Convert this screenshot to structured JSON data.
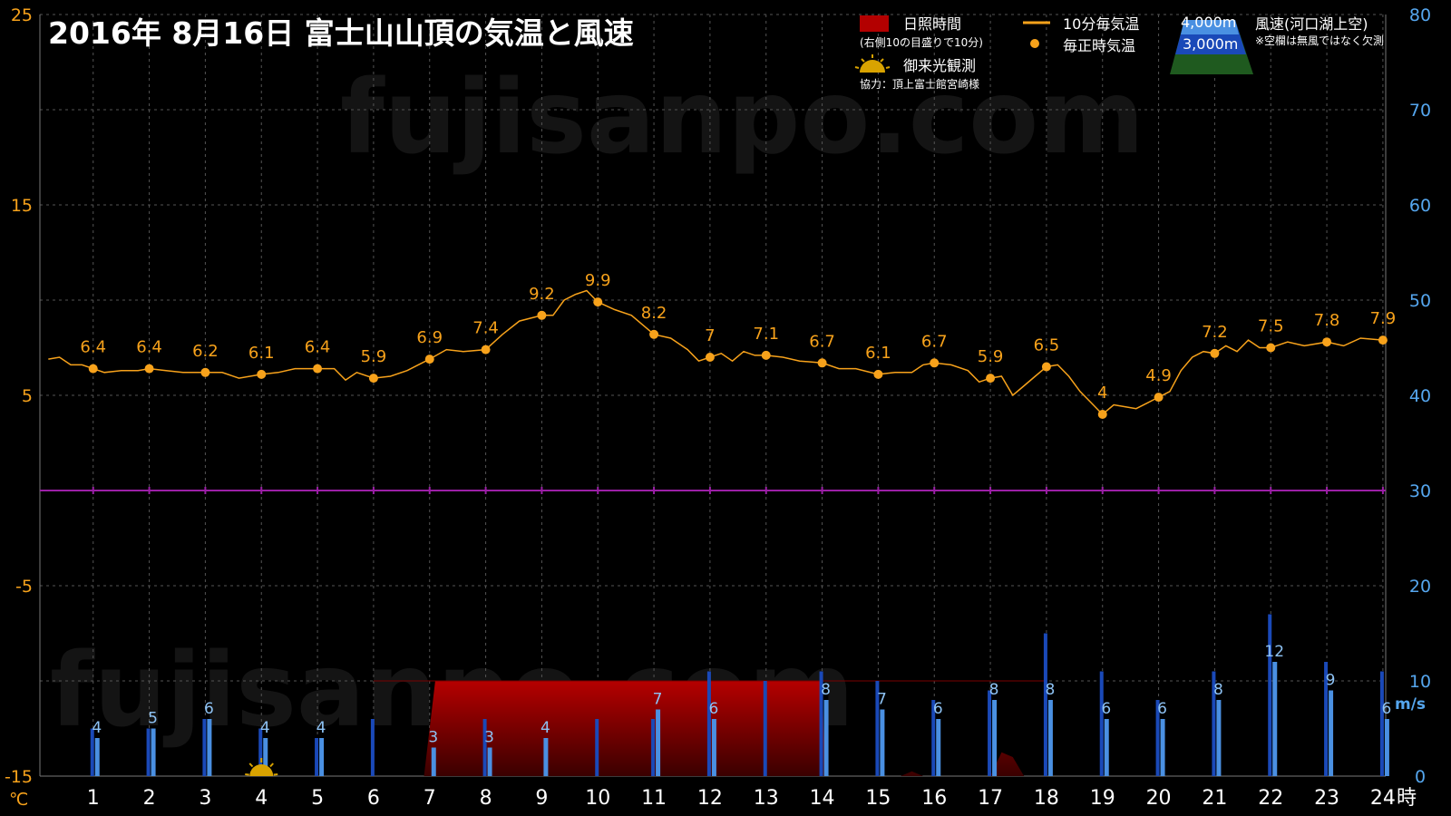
{
  "title": "2016年  8月16日   富士山山頂の気温と風速",
  "watermark": "fujisanpo.com",
  "colors": {
    "temp": "#f7a21b",
    "wind_4000": "#1a49b8",
    "wind_3000": "#4a90e2",
    "sunshine": "#8b0000",
    "zero_line": "#9b1fa6",
    "grid": "#555555"
  },
  "legend": {
    "sunshine_label": "日照時間",
    "sunshine_note": "(右側10の目盛りで10分)",
    "temp10_label": "10分毎気温",
    "hourly_label": "毎正時気温",
    "sunrise_label": "御来光観測",
    "credit": "協力：頂上富士館宮崎様",
    "alt_4000": "4,000m",
    "alt_3000": "3,000m",
    "wind_label": "風速(河口湖上空)",
    "wind_note": "※空欄は無風ではなく欠測"
  },
  "chart_data": {
    "type": "line",
    "title": "2016年  8月16日   富士山山頂の気温と風速",
    "x": [
      1,
      2,
      3,
      4,
      5,
      6,
      7,
      8,
      9,
      10,
      11,
      12,
      13,
      14,
      15,
      16,
      17,
      18,
      19,
      20,
      21,
      22,
      23,
      24
    ],
    "xlim": [
      0.05,
      24.05
    ],
    "x_unit": "時",
    "y_left_unit": "℃",
    "y_left_lim": [
      -15,
      25
    ],
    "y_left_ticks": [
      "25",
      "15",
      "5",
      "-5",
      "-15"
    ],
    "y_right_unit": "m/s",
    "y_right_lim": [
      0,
      80
    ],
    "y_right_ticks": [
      "80",
      "70",
      "60",
      "50",
      "40",
      "30",
      "20",
      "10",
      "0"
    ],
    "grid": true,
    "hourly_temp": {
      "name": "毎正時気温",
      "values": [
        6.4,
        6.4,
        6.2,
        6.1,
        6.4,
        5.9,
        6.9,
        7.4,
        9.2,
        9.9,
        8.2,
        7,
        7.1,
        6.7,
        6.1,
        6.7,
        5.9,
        6.5,
        4,
        4.9,
        7.2,
        7.5,
        7.8,
        7.9
      ],
      "labels": [
        "6.4",
        "6.4",
        "6.2",
        "6.1",
        "6.4",
        "5.9",
        "6.9",
        "7.4",
        "9.2",
        "9.9",
        "8.2",
        "7",
        "7.1",
        "6.7",
        "6.1",
        "6.7",
        "5.9",
        "6.5",
        "4",
        "4.9",
        "7.2",
        "7.5",
        "7.8",
        "7.9"
      ]
    },
    "temp_10min": {
      "name": "10分毎気温",
      "x": [
        0.2,
        0.4,
        0.6,
        0.8,
        1.0,
        1.2,
        1.5,
        1.8,
        2.0,
        2.3,
        2.6,
        3.0,
        3.3,
        3.6,
        4.0,
        4.3,
        4.6,
        5.0,
        5.3,
        5.5,
        5.7,
        6.0,
        6.3,
        6.6,
        7.0,
        7.3,
        7.6,
        8.0,
        8.3,
        8.6,
        9.0,
        9.2,
        9.4,
        9.6,
        9.8,
        10.0,
        10.3,
        10.6,
        11.0,
        11.3,
        11.6,
        11.8,
        12.0,
        12.2,
        12.4,
        12.6,
        12.8,
        13.0,
        13.3,
        13.6,
        14.0,
        14.3,
        14.6,
        15.0,
        15.3,
        15.6,
        15.8,
        16.0,
        16.3,
        16.6,
        16.8,
        17.0,
        17.2,
        17.4,
        17.6,
        17.8,
        18.0,
        18.2,
        18.4,
        18.6,
        18.8,
        19.0,
        19.2,
        19.4,
        19.6,
        19.8,
        20.0,
        20.2,
        20.4,
        20.6,
        20.8,
        21.0,
        21.2,
        21.4,
        21.6,
        21.8,
        22.0,
        22.3,
        22.6,
        23.0,
        23.3,
        23.6,
        24.0
      ],
      "values": [
        6.9,
        7.0,
        6.6,
        6.6,
        6.4,
        6.2,
        6.3,
        6.3,
        6.4,
        6.3,
        6.2,
        6.2,
        6.2,
        5.9,
        6.1,
        6.2,
        6.4,
        6.4,
        6.4,
        5.8,
        6.2,
        5.9,
        6.0,
        6.3,
        6.9,
        7.4,
        7.3,
        7.4,
        8.2,
        8.9,
        9.2,
        9.2,
        10.0,
        10.3,
        10.5,
        9.9,
        9.5,
        9.2,
        8.2,
        8.0,
        7.4,
        6.8,
        7.0,
        7.2,
        6.8,
        7.3,
        7.1,
        7.1,
        7.0,
        6.8,
        6.7,
        6.4,
        6.4,
        6.1,
        6.2,
        6.2,
        6.6,
        6.7,
        6.6,
        6.3,
        5.7,
        5.9,
        6.0,
        5.0,
        5.5,
        6.0,
        6.5,
        6.6,
        6.0,
        5.2,
        4.6,
        4.0,
        4.5,
        4.4,
        4.3,
        4.6,
        4.9,
        5.2,
        6.3,
        7.0,
        7.3,
        7.2,
        7.6,
        7.3,
        7.9,
        7.5,
        7.5,
        7.8,
        7.6,
        7.8,
        7.6,
        8.0,
        7.9
      ]
    },
    "wind_4000": {
      "name": "4,000m",
      "x": [
        1,
        2,
        3,
        4,
        5,
        6,
        8,
        10,
        11,
        12,
        13,
        14,
        15,
        16,
        17,
        18,
        19,
        20,
        21,
        22,
        23,
        24
      ],
      "values": [
        5,
        5,
        6,
        5,
        4,
        6,
        6,
        6,
        6,
        11,
        10,
        11,
        10,
        8,
        9,
        15,
        11,
        8,
        11,
        17,
        12,
        11
      ]
    },
    "wind_3000": {
      "name": "3,000m",
      "x": [
        1,
        2,
        3,
        4,
        5,
        7,
        8,
        9,
        11,
        12,
        14,
        15,
        16,
        17,
        18,
        19,
        20,
        21,
        22,
        23,
        24
      ],
      "values": [
        4,
        5,
        6,
        4,
        4,
        3,
        3,
        4,
        7,
        6,
        8,
        7,
        6,
        8,
        8,
        6,
        6,
        8,
        12,
        9,
        6
      ],
      "labels": [
        "4",
        "5",
        "6",
        "4",
        "4",
        "3",
        "3",
        "4",
        "7",
        "6",
        "8",
        "7",
        "6",
        "8",
        "8",
        "6",
        "6",
        "8",
        "12",
        "9",
        "6"
      ]
    },
    "sunshine_minutes": {
      "name": "日照時間",
      "x": [
        6.0,
        6.9,
        7.1,
        14.0,
        14.05,
        15.4,
        15.6,
        15.8,
        16.4,
        17.0,
        17.2,
        17.4,
        17.6
      ],
      "values": [
        0,
        0,
        10,
        10,
        0,
        0,
        0.5,
        0,
        0,
        0,
        2.5,
        2.0,
        0
      ]
    },
    "sunrise_hour": 4.0
  }
}
